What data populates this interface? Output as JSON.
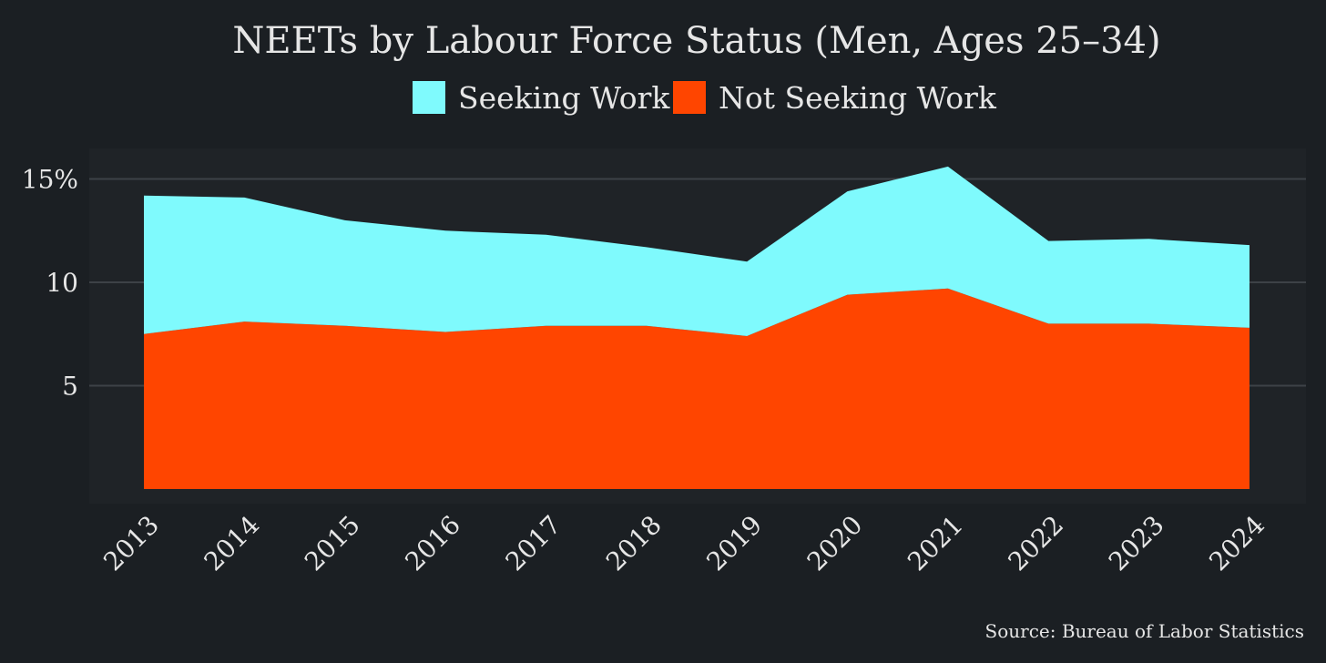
{
  "chart_data": {
    "type": "area",
    "stacked": true,
    "title": "NEETs by Labour Force Status (Men, Ages 25–34)",
    "x": [
      "2013",
      "2014",
      "2015",
      "2016",
      "2017",
      "2018",
      "2019",
      "2020",
      "2021",
      "2022",
      "2023",
      "2024"
    ],
    "series": [
      {
        "name": "Not Seeking Work",
        "color": "#ff4500",
        "values": [
          7.5,
          8.1,
          7.9,
          7.6,
          7.9,
          7.9,
          7.4,
          9.4,
          9.7,
          8.0,
          8.0,
          7.8
        ]
      },
      {
        "name": "Seeking Work",
        "color": "#7ffafd",
        "values": [
          6.7,
          6.0,
          5.1,
          4.9,
          4.4,
          3.8,
          3.6,
          5.0,
          5.9,
          4.0,
          4.1,
          4.0
        ]
      }
    ],
    "legend_order": [
      "Seeking Work",
      "Not Seeking Work"
    ],
    "legend_position": "top",
    "yticks": [
      {
        "value": 5,
        "label": "5"
      },
      {
        "value": 10,
        "label": "10"
      },
      {
        "value": 15,
        "label": "15%"
      }
    ],
    "ylim": [
      0,
      16.5
    ],
    "grid": "horizontal",
    "source": "Source: Bureau of Labor Statistics"
  }
}
